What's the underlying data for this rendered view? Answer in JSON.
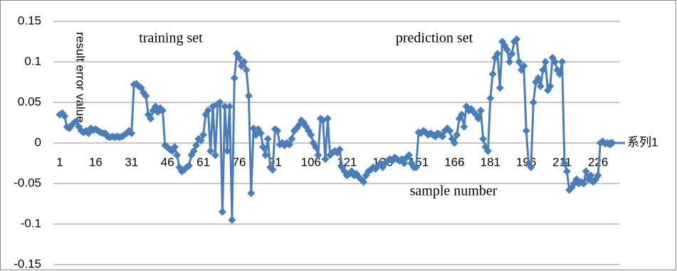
{
  "chart_data": {
    "type": "line",
    "ylabel": "result error value",
    "annotations": [
      "training set",
      "prediction set",
      "sample number"
    ],
    "categories": [
      "1",
      null,
      null,
      null,
      null,
      null,
      null,
      null,
      null,
      null,
      null,
      null,
      null,
      null,
      null,
      "16",
      null,
      null,
      null,
      null,
      null,
      null,
      null,
      null,
      null,
      null,
      null,
      null,
      null,
      null,
      "31",
      null,
      null,
      null,
      null,
      null,
      null,
      null,
      null,
      null,
      null,
      null,
      null,
      null,
      null,
      "46",
      null,
      null,
      null,
      null,
      null,
      null,
      null,
      null,
      null,
      null,
      null,
      null,
      null,
      null,
      "61",
      null,
      null,
      null,
      null,
      null,
      null,
      null,
      null,
      null,
      null,
      null,
      null,
      null,
      null,
      "76",
      null,
      null,
      null,
      null,
      null,
      null,
      null,
      null,
      null,
      null,
      null,
      null,
      null,
      null,
      "91",
      null,
      null,
      null,
      null,
      null,
      null,
      null,
      null,
      null,
      null,
      null,
      null,
      null,
      null,
      "106",
      null,
      null,
      null,
      null,
      null,
      null,
      null,
      null,
      null,
      null,
      null,
      null,
      null,
      null,
      "121",
      null,
      null,
      null,
      null,
      null,
      null,
      null,
      null,
      null,
      null,
      null,
      null,
      null,
      null,
      "136",
      null,
      null,
      null,
      null,
      null,
      null,
      null,
      null,
      null,
      null,
      null,
      null,
      null,
      null,
      "151",
      null,
      null,
      null,
      null,
      null,
      null,
      null,
      null,
      null,
      null,
      null,
      null,
      null,
      null,
      "166",
      null,
      null,
      null,
      null,
      null,
      null,
      null,
      null,
      null,
      null,
      null,
      null,
      null,
      null,
      "181",
      null,
      null,
      null,
      null,
      null,
      null,
      null,
      null,
      null,
      null,
      null,
      null,
      null,
      null,
      "196",
      null,
      null,
      null,
      null,
      null,
      null,
      null,
      null,
      null,
      null,
      null,
      null,
      null,
      null,
      "211",
      null,
      null,
      null,
      null,
      null,
      null,
      null,
      null,
      null,
      null,
      null,
      null,
      null,
      null,
      "226",
      null,
      null,
      null,
      null,
      null,
      null
    ],
    "series": [
      {
        "name": "系列1",
        "color": "#4a7ebb",
        "values": [
          0.035,
          0.037,
          0.033,
          0.02,
          0.018,
          0.022,
          0.025,
          0.027,
          0.02,
          0.015,
          0.013,
          0.015,
          0.012,
          0.018,
          0.016,
          0.017,
          0.015,
          0.013,
          0.012,
          0.012,
          0.008,
          0.007,
          0.008,
          0.007,
          0.008,
          0.007,
          0.008,
          0.01,
          0.012,
          0.015,
          0.012,
          0.072,
          0.073,
          0.07,
          0.068,
          0.062,
          0.058,
          0.035,
          0.03,
          0.04,
          0.045,
          0.038,
          0.043,
          0.04,
          -0.003,
          -0.005,
          -0.008,
          -0.01,
          -0.005,
          -0.015,
          -0.03,
          -0.035,
          -0.033,
          -0.03,
          -0.028,
          -0.015,
          -0.01,
          -0.003,
          0.005,
          0.003,
          0.01,
          0.035,
          0.04,
          -0.01,
          0.045,
          -0.015,
          0.048,
          0.05,
          -0.085,
          0.045,
          -0.01,
          0.045,
          -0.095,
          0.08,
          0.11,
          0.105,
          0.095,
          0.1,
          0.09,
          0.058,
          -0.062,
          0.018,
          0.01,
          0.017,
          0.012,
          -0.005,
          -0.015,
          0.005,
          -0.03,
          -0.033,
          0.017,
          0.015,
          -0.002,
          0.0,
          -0.003,
          0.0,
          -0.002,
          0.005,
          0.015,
          0.018,
          0.022,
          0.028,
          0.025,
          0.02,
          0.015,
          0.01,
          0.0,
          -0.005,
          -0.015,
          0.03,
          0.028,
          -0.02,
          0.03,
          -0.015,
          -0.012,
          -0.01,
          -0.012,
          -0.008,
          -0.03,
          -0.035,
          -0.04,
          -0.038,
          -0.035,
          -0.04,
          -0.038,
          -0.042,
          -0.045,
          -0.048,
          -0.04,
          -0.035,
          -0.033,
          -0.03,
          -0.032,
          -0.028,
          -0.025,
          -0.03,
          -0.025,
          -0.022,
          -0.02,
          -0.022,
          -0.018,
          -0.02,
          -0.022,
          -0.02,
          -0.025,
          -0.018,
          -0.015,
          -0.025,
          -0.03,
          -0.03,
          0.013,
          0.012,
          0.015,
          0.013,
          0.01,
          0.012,
          0.01,
          0.008,
          0.012,
          0.01,
          0.008,
          0.015,
          0.018,
          0.015,
          0.005,
          0.0,
          0.01,
          0.03,
          0.035,
          0.02,
          0.045,
          0.04,
          0.042,
          0.038,
          0.035,
          0.03,
          0.04,
          0.005,
          -0.005,
          -0.01,
          0.055,
          0.085,
          0.105,
          0.11,
          0.068,
          0.125,
          0.12,
          0.115,
          0.1,
          0.11,
          0.125,
          0.128,
          0.1,
          0.09,
          0.095,
          0.015,
          -0.025,
          -0.03,
          0.05,
          0.075,
          0.08,
          0.07,
          0.09,
          0.1,
          0.065,
          0.07,
          0.105,
          0.1,
          0.09,
          0.085,
          0.1,
          -0.025,
          -0.035,
          -0.058,
          -0.055,
          -0.05,
          -0.045,
          -0.05,
          -0.048,
          -0.05,
          -0.035,
          -0.045,
          -0.04,
          -0.048,
          -0.045,
          -0.04,
          0.0,
          0.002,
          -0.001,
          0.0,
          -0.002,
          0.0
        ]
      }
    ],
    "ylim": [
      -0.15,
      0.15
    ],
    "yticks": [
      -0.15,
      -0.1,
      -0.05,
      0,
      0.05,
      0.1,
      0.15
    ],
    "grid": true,
    "legend": "right"
  }
}
